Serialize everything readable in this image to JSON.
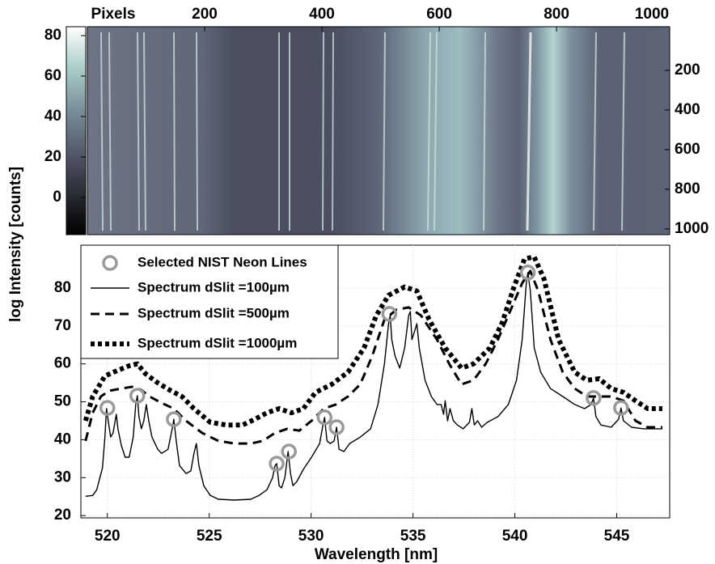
{
  "chart_data": [
    {
      "type": "image",
      "x_label": "Pixels",
      "xlim": [
        0,
        993
      ],
      "xticks": [
        200,
        400,
        600,
        800,
        1000
      ],
      "ylim": [
        -20,
        1029
      ],
      "yticks": [
        200,
        400,
        600,
        800,
        1000
      ],
      "colorbar": {
        "lim": [
          -18.4,
          84.4
        ],
        "ticks": [
          0,
          20,
          40,
          60,
          80
        ]
      }
    },
    {
      "type": "line",
      "x_label": "Wavelength [nm]",
      "y_label": "log Intensity [counts]",
      "xlim": [
        518.7,
        547.6
      ],
      "xticks": [
        520,
        525,
        530,
        535,
        540,
        545
      ],
      "ylim": [
        19.4,
        91.3
      ],
      "yticks": [
        20,
        30,
        40,
        50,
        60,
        70,
        80
      ],
      "grid": true,
      "legend": "upper left",
      "series": [
        {
          "name": "Selected NIST Neon Lines",
          "type": "scatter",
          "marker": "circle",
          "color": "#9a9a9a",
          "x": [
            520.0,
            521.47,
            523.26,
            528.31,
            528.91,
            530.66,
            531.25,
            533.84,
            540.64,
            543.86,
            545.21
          ],
          "values": [
            48.4,
            51.6,
            45.4,
            33.7,
            36.9,
            45.9,
            43.3,
            73.2,
            84.1,
            51.0,
            48.4
          ]
        },
        {
          "name": "Spectrum dSlit =100µm",
          "type": "line",
          "linestyle": "solid",
          "color": "#000000",
          "x": [
            518.93,
            519.28,
            519.48,
            519.76,
            519.88,
            519.96,
            520.04,
            520.16,
            520.28,
            520.44,
            520.52,
            520.68,
            520.87,
            521.07,
            521.27,
            521.39,
            521.47,
            521.55,
            521.67,
            521.79,
            521.91,
            522.03,
            522.19,
            522.47,
            522.66,
            522.98,
            523.18,
            523.26,
            523.38,
            523.54,
            523.86,
            524.1,
            524.25,
            524.37,
            524.49,
            524.73,
            525.05,
            525.45,
            526.24,
            527.04,
            527.44,
            527.83,
            528.11,
            528.23,
            528.31,
            528.43,
            528.55,
            528.71,
            528.87,
            528.99,
            529.11,
            529.3,
            529.62,
            530.02,
            530.42,
            530.58,
            530.66,
            530.78,
            530.94,
            531.13,
            531.25,
            531.37,
            531.61,
            531.89,
            532.41,
            532.92,
            533.28,
            533.6,
            533.8,
            533.88,
            533.96,
            534.12,
            534.35,
            534.59,
            534.79,
            534.87,
            534.95,
            535.07,
            535.19,
            535.31,
            535.59,
            535.9,
            536.18,
            536.38,
            536.5,
            536.58,
            536.7,
            536.82,
            536.98,
            537.18,
            537.46,
            537.77,
            537.89,
            538.01,
            538.17,
            538.37,
            538.65,
            539.17,
            539.68,
            540.08,
            540.36,
            540.56,
            540.64,
            540.76,
            540.95,
            541.27,
            541.75,
            542.35,
            542.94,
            543.42,
            543.74,
            543.86,
            543.98,
            544.22,
            544.73,
            545.09,
            545.21,
            545.33,
            545.73,
            546.32,
            546.92,
            547.24
          ],
          "values": [
            25.1,
            25.3,
            26.8,
            32.6,
            40.7,
            48.2,
            45.0,
            40.7,
            41.8,
            46.7,
            42.9,
            38.6,
            35.4,
            35.4,
            40.7,
            49.3,
            51.6,
            46.1,
            42.9,
            45.0,
            49.3,
            45.0,
            40.7,
            37.5,
            36.4,
            37.5,
            42.9,
            45.4,
            39.7,
            33.2,
            31.1,
            31.8,
            36.4,
            39.0,
            33.2,
            27.9,
            25.3,
            24.3,
            24.1,
            24.3,
            25.3,
            26.8,
            30.0,
            33.2,
            33.7,
            27.9,
            27.3,
            30.0,
            36.9,
            31.1,
            27.9,
            29.0,
            32.2,
            35.4,
            39.0,
            43.9,
            45.9,
            39.7,
            39.0,
            39.7,
            43.3,
            37.5,
            36.9,
            39.0,
            40.7,
            42.9,
            49.3,
            60.0,
            70.6,
            72.8,
            66.4,
            62.1,
            58.9,
            64.2,
            72.8,
            73.8,
            66.4,
            68.5,
            70.6,
            64.2,
            55.7,
            51.4,
            49.3,
            49.3,
            46.7,
            50.3,
            45.0,
            48.2,
            45.0,
            43.9,
            42.9,
            44.6,
            48.2,
            43.9,
            45.0,
            43.3,
            44.6,
            46.1,
            49.3,
            55.7,
            66.4,
            81.3,
            84.1,
            79.2,
            64.2,
            57.8,
            53.5,
            51.4,
            49.3,
            48.2,
            49.3,
            51.0,
            46.1,
            43.9,
            43.3,
            45.4,
            48.4,
            45.0,
            43.3,
            42.9,
            42.9,
            42.9
          ]
        },
        {
          "name": "Spectrum dSlit =500µm",
          "type": "line",
          "linestyle": "dashed",
          "color": "#000000",
          "x": [
            518.93,
            519.28,
            519.68,
            520.08,
            520.68,
            521.27,
            521.67,
            522.07,
            522.66,
            523.26,
            523.86,
            524.65,
            525.45,
            526.24,
            527.04,
            527.63,
            528.23,
            528.83,
            529.42,
            530.02,
            530.62,
            531.21,
            531.81,
            532.41,
            533.0,
            533.6,
            534.19,
            534.79,
            535.39,
            536.18,
            536.78,
            537.38,
            537.97,
            538.57,
            539.17,
            539.76,
            540.36,
            540.76,
            541.15,
            541.75,
            542.35,
            542.94,
            543.54,
            544.14,
            544.73,
            545.33,
            545.92,
            546.52,
            547.24
          ],
          "values": [
            39.7,
            47.1,
            51.4,
            52.9,
            53.5,
            54.0,
            53.1,
            51.4,
            49.7,
            48.2,
            45.0,
            41.8,
            39.7,
            39.0,
            39.0,
            39.7,
            41.8,
            42.9,
            42.4,
            45.0,
            48.2,
            49.3,
            51.4,
            54.6,
            62.1,
            71.7,
            74.3,
            74.9,
            72.8,
            66.4,
            60.0,
            54.6,
            55.7,
            60.0,
            66.4,
            73.8,
            81.3,
            84.5,
            79.2,
            66.4,
            57.8,
            53.5,
            51.4,
            51.4,
            51.4,
            50.3,
            45.0,
            43.3,
            43.3
          ]
        },
        {
          "name": "Spectrum dSlit =1000µm",
          "type": "line",
          "linestyle": "dotted",
          "color": "#000000",
          "x": [
            518.93,
            519.28,
            519.88,
            520.48,
            521.07,
            521.47,
            521.87,
            522.47,
            523.06,
            523.66,
            524.25,
            525.05,
            525.84,
            526.64,
            527.24,
            527.83,
            528.43,
            529.03,
            529.62,
            530.22,
            531.01,
            531.81,
            532.6,
            533.2,
            533.8,
            534.59,
            535.19,
            535.79,
            536.58,
            537.38,
            537.97,
            538.77,
            539.36,
            539.96,
            540.48,
            540.95,
            541.43,
            542.15,
            542.94,
            543.54,
            544.14,
            544.73,
            545.33,
            545.92,
            546.52,
            547.24
          ],
          "values": [
            45.0,
            51.4,
            56.8,
            58.2,
            59.5,
            60.0,
            57.4,
            55.0,
            53.1,
            51.4,
            48.2,
            44.6,
            43.9,
            43.9,
            45.4,
            47.1,
            48.2,
            47.1,
            48.2,
            52.5,
            54.6,
            57.8,
            64.2,
            72.8,
            78.1,
            80.3,
            79.2,
            71.7,
            64.2,
            58.9,
            60.0,
            64.2,
            70.6,
            80.3,
            87.7,
            88.2,
            82.4,
            66.4,
            57.8,
            55.7,
            56.1,
            53.5,
            52.5,
            50.3,
            48.2,
            48.2
          ]
        }
      ]
    }
  ]
}
